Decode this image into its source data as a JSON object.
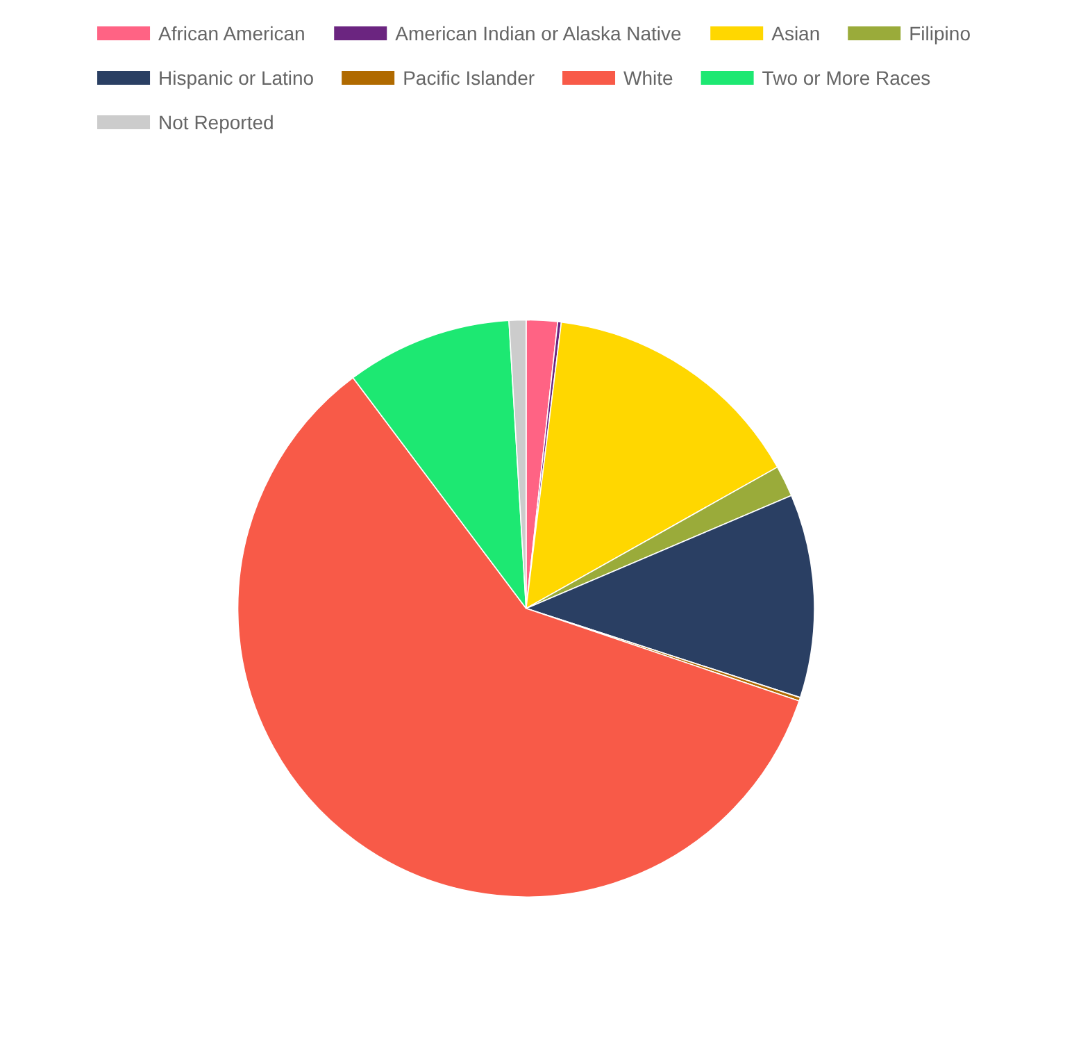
{
  "chart_data": {
    "type": "pie",
    "categories": [
      "African American",
      "American Indian or Alaska Native",
      "Asian",
      "Filipino",
      "Hispanic or Latino",
      "Pacific Islander",
      "White",
      "Two or More Races",
      "Not Reported"
    ],
    "values": [
      1.75,
      0.2,
      14.9,
      1.75,
      11.4,
      0.2,
      59.55,
      9.3,
      0.95
    ],
    "colors": [
      "#ff6384",
      "#6b2580",
      "#ffd700",
      "#9aab3a",
      "#2a3f63",
      "#b06a00",
      "#f85a48",
      "#1de872",
      "#cccccc"
    ],
    "legend": "top"
  }
}
